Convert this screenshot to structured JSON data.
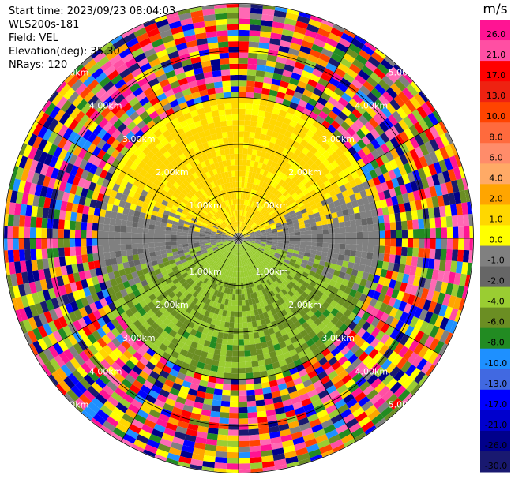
{
  "info": {
    "start_time": "Start time: 2023/09/23 08:04:03",
    "instrument": "WLS200s-181",
    "field": "Field: VEL",
    "elevation": "Elevation(deg): 35.30",
    "nrays": "NRays: 120"
  },
  "chart_data": {
    "type": "heatmap",
    "projection": "polar",
    "nrays": 120,
    "max_range_km": 5.9,
    "range_ring_labels": [
      "1.00km",
      "2.00km",
      "3.00km",
      "4.00km",
      "5.00km"
    ],
    "range_rings_km": [
      1,
      2,
      3,
      4,
      5
    ],
    "colorbar": {
      "unit": "m/s",
      "tick_labels": [
        "26.0",
        "21.0",
        "17.0",
        "13.0",
        "10.0",
        "8.0",
        "6.0",
        "4.0",
        "2.0",
        "1.0",
        "0.0",
        "-1.0",
        "-2.0",
        "-4.0",
        "-6.0",
        "-8.0",
        "-10.0",
        "-13.0",
        "-17.0",
        "-21.0",
        "-26.0",
        "-30.0"
      ],
      "colors": [
        "#ff1493",
        "#ff4fa3",
        "#ff0000",
        "#ee2211",
        "#ff4400",
        "#ff6a3d",
        "#ff8c6a",
        "#ffaa66",
        "#ffa500",
        "#ffd700",
        "#ffff00",
        "#808080",
        "#666666",
        "#9acd32",
        "#6b8e23",
        "#228b22",
        "#1e90ff",
        "#4169e1",
        "#0000ff",
        "#0000cd",
        "#00008b",
        "#191970"
      ]
    },
    "pattern": {
      "near_region_km": 3.0,
      "north_half": "positive velocities (+1 to +4 m/s, yellow/gold)",
      "south_half": "negative velocities (-1 to -6 m/s, green)",
      "east_west_band": "near zero (grey)",
      "outer_region": "noise (random colors)"
    }
  }
}
